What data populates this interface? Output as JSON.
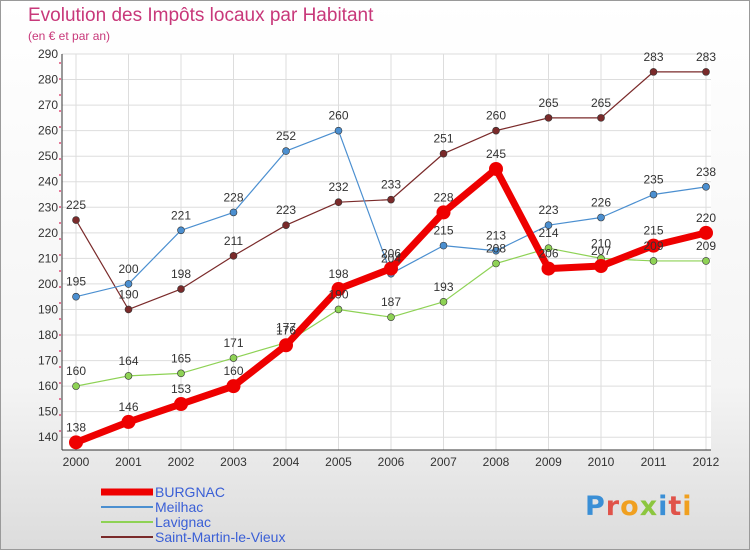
{
  "title": "Evolution des Impôts locaux par Habitant",
  "subtitle": "(en € et par an)",
  "brand": {
    "name": "Proxiti",
    "letters": [
      {
        "ch": "P",
        "color": "#3a8fd6"
      },
      {
        "ch": "r",
        "color": "#e0534a"
      },
      {
        "ch": "o",
        "color": "#f0a020"
      },
      {
        "ch": "x",
        "color": "#8cc63f"
      },
      {
        "ch": "i",
        "color": "#3a8fd6"
      },
      {
        "ch": "t",
        "color": "#e0534a"
      },
      {
        "ch": "i",
        "color": "#f0a020"
      }
    ]
  },
  "colors": {
    "title": "#c8387a",
    "grid": "#dddddd",
    "axis": "#333333",
    "dash": "#e0507a"
  },
  "chart_data": {
    "type": "line",
    "title": "Evolution des Impôts locaux par Habitant",
    "subtitle": "(en € et par an)",
    "x": [
      2000,
      2001,
      2002,
      2003,
      2004,
      2005,
      2006,
      2007,
      2008,
      2009,
      2010,
      2011,
      2012
    ],
    "ylim": [
      135,
      290
    ],
    "yticks": [
      140,
      150,
      160,
      170,
      180,
      190,
      200,
      210,
      220,
      230,
      240,
      250,
      260,
      270,
      280,
      290
    ],
    "grid": true,
    "legend": "bottom-left",
    "series": [
      {
        "name": "Saint-Martin-le-Vieux",
        "color": "#7a2a2a",
        "width": 1.2,
        "marker": 3.5,
        "values": [
          225,
          190,
          198,
          211,
          223,
          232,
          233,
          251,
          260,
          265,
          265,
          283,
          283
        ],
        "labels": [
          "225",
          "190",
          "198",
          "211",
          "223",
          "232",
          "233",
          "251",
          "260",
          "265",
          "265",
          "283",
          "283"
        ]
      },
      {
        "name": "Meilhac",
        "color": "#4b8fd0",
        "width": 1.2,
        "marker": 3.5,
        "values": [
          195,
          200,
          221,
          228,
          252,
          260,
          204,
          215,
          213,
          223,
          226,
          235,
          238
        ],
        "labels": [
          "195",
          "200",
          "221",
          "228",
          "252",
          "260",
          "204",
          "215",
          "213",
          "223",
          "226",
          "235",
          "238"
        ]
      },
      {
        "name": "Lavignac",
        "color": "#8ed255",
        "width": 1.2,
        "marker": 3.5,
        "values": [
          160,
          164,
          165,
          171,
          177,
          190,
          187,
          193,
          208,
          214,
          210,
          209,
          209
        ],
        "labels": [
          "160",
          "164",
          "165",
          "171",
          "177",
          "190",
          "187",
          "193",
          "208",
          "214",
          "210",
          "209",
          "209"
        ]
      },
      {
        "name": "BURGNAC",
        "color": "#ee0000",
        "width": 7,
        "marker": 7,
        "values": [
          138,
          146,
          153,
          160,
          176,
          198,
          206,
          228,
          245,
          206,
          207,
          215,
          220
        ],
        "labels": [
          "138",
          "146",
          "153",
          "160",
          "176",
          "198",
          "206",
          "228",
          "245",
          "206",
          "207",
          "215",
          "220"
        ]
      }
    ],
    "legend_entries": [
      {
        "name": "BURGNAC",
        "color": "#ee0000",
        "thickness": 7
      },
      {
        "name": "Meilhac",
        "color": "#4b8fd0",
        "thickness": 2
      },
      {
        "name": "Lavignac",
        "color": "#8ed255",
        "thickness": 2
      },
      {
        "name": "Saint-Martin-le-Vieux",
        "color": "#7a2a2a",
        "thickness": 2
      }
    ],
    "legend_text_color": "#3a5fd6"
  }
}
